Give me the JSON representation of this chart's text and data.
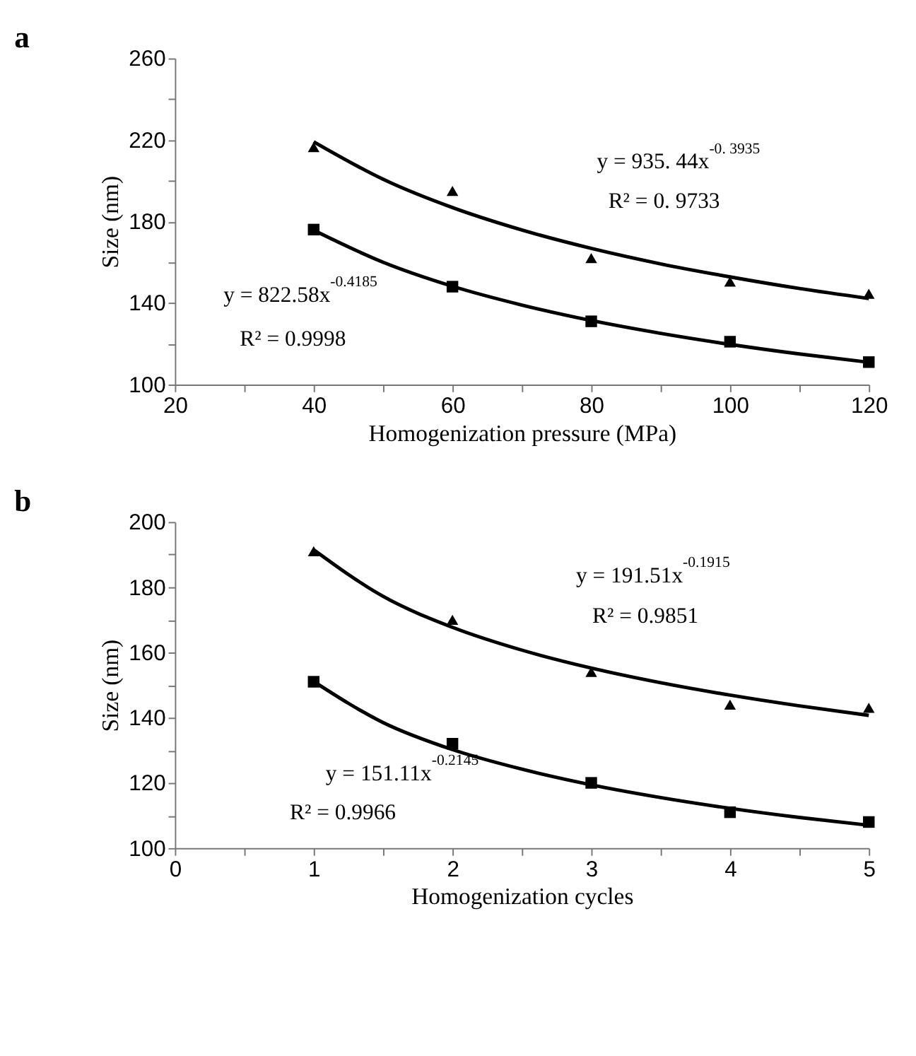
{
  "chart_data": [
    {
      "type": "scatter",
      "title": "a",
      "xlabel": "Homogenization pressure (MPa)",
      "ylabel": "Size (nm)",
      "xlim": [
        20,
        120
      ],
      "ylim": [
        100,
        260
      ],
      "grid": false,
      "xticks": [
        20,
        {
          "value": 30,
          "label": null
        },
        40,
        {
          "value": 50,
          "label": null
        },
        60,
        {
          "value": 70,
          "label": null
        },
        80,
        {
          "value": 90,
          "label": null
        },
        100,
        {
          "value": 110,
          "label": null
        },
        120
      ],
      "yticks": [
        100,
        {
          "value": 120,
          "label": null
        },
        140,
        {
          "value": 160,
          "label": null
        },
        180,
        {
          "value": 200,
          "label": null
        },
        220,
        {
          "value": 240,
          "label": null
        },
        260
      ],
      "series": [
        {
          "type": "scatter",
          "marker": "triangle",
          "color": "#000000",
          "x": [
            40,
            60,
            80,
            100,
            120
          ],
          "values": [
            216.5,
            195,
            162,
            150.5,
            144.5
          ]
        },
        {
          "type": "scatter",
          "marker": "square",
          "color": "#000000",
          "x": [
            40,
            60,
            80,
            100,
            120
          ],
          "values": [
            176,
            148,
            131,
            121,
            111
          ]
        },
        {
          "type": "line",
          "marker": "none",
          "line_style": "solid",
          "color": "#000000",
          "x": [
            40,
            50,
            60,
            70,
            80,
            90,
            100,
            110,
            120
          ],
          "values": [
            219.1,
            200.7,
            186.8,
            175.8,
            166.8,
            159.2,
            152.8,
            147.1,
            142.2
          ]
        },
        {
          "type": "line",
          "marker": "none",
          "line_style": "solid",
          "color": "#000000",
          "x": [
            40,
            50,
            60,
            70,
            80,
            90,
            100,
            110,
            120
          ],
          "values": [
            175.7,
            160.0,
            148.2,
            139.0,
            131.4,
            125.1,
            119.7,
            115.0,
            110.9
          ]
        }
      ],
      "annotations": [
        "y = 935. 44x$^{-0. 3935}$",
        "R² = 0. 9733",
        "y = 822.58x$^{-0.4185}$",
        "R² = 0.9998"
      ]
    },
    {
      "type": "scatter",
      "title": "b",
      "xlabel": "Homogenization cycles",
      "ylabel": "Size (nm)",
      "xlim": [
        0,
        5
      ],
      "ylim": [
        100,
        200
      ],
      "grid": false,
      "xticks": [
        0,
        {
          "value": 0.5,
          "label": null
        },
        1,
        {
          "value": 1.5,
          "label": null
        },
        2,
        {
          "value": 2.5,
          "label": null
        },
        3,
        {
          "value": 3.5,
          "label": null
        },
        4,
        {
          "value": 4.5,
          "label": null
        },
        5
      ],
      "yticks": [
        100,
        {
          "value": 110,
          "label": null
        },
        120,
        {
          "value": 130,
          "label": null
        },
        140,
        {
          "value": 150,
          "label": null
        },
        160,
        {
          "value": 170,
          "label": null
        },
        180,
        {
          "value": 190,
          "label": null
        },
        200
      ],
      "series": [
        {
          "type": "scatter",
          "marker": "triangle",
          "color": "#000000",
          "x": [
            1,
            2,
            3,
            4,
            5
          ],
          "values": [
            191,
            170,
            154,
            144,
            143
          ]
        },
        {
          "type": "scatter",
          "marker": "square",
          "color": "#000000",
          "x": [
            1,
            2,
            3,
            4,
            5
          ],
          "values": [
            151,
            132,
            120,
            111,
            108
          ]
        },
        {
          "type": "line",
          "marker": "none",
          "line_style": "solid",
          "color": "#000000",
          "x": [
            1,
            1.5,
            2,
            2.5,
            3,
            3.5,
            4,
            4.5,
            5
          ],
          "values": [
            191.5,
            177.2,
            167.7,
            160.7,
            155.2,
            150.7,
            146.9,
            143.6,
            140.7
          ]
        },
        {
          "type": "line",
          "marker": "none",
          "line_style": "solid",
          "color": "#000000",
          "x": [
            1,
            1.5,
            2,
            2.5,
            3,
            3.5,
            4,
            4.5,
            5
          ],
          "values": [
            151.1,
            138.5,
            130.2,
            124.2,
            119.4,
            115.5,
            112.2,
            109.4,
            107.0
          ]
        }
      ],
      "annotations": [
        "y = 191.51x$^{-0.1915}$",
        "R² = 0.9851",
        "y = 151.11x$^{-0.2145}$",
        "R² = 0.9966"
      ]
    }
  ]
}
